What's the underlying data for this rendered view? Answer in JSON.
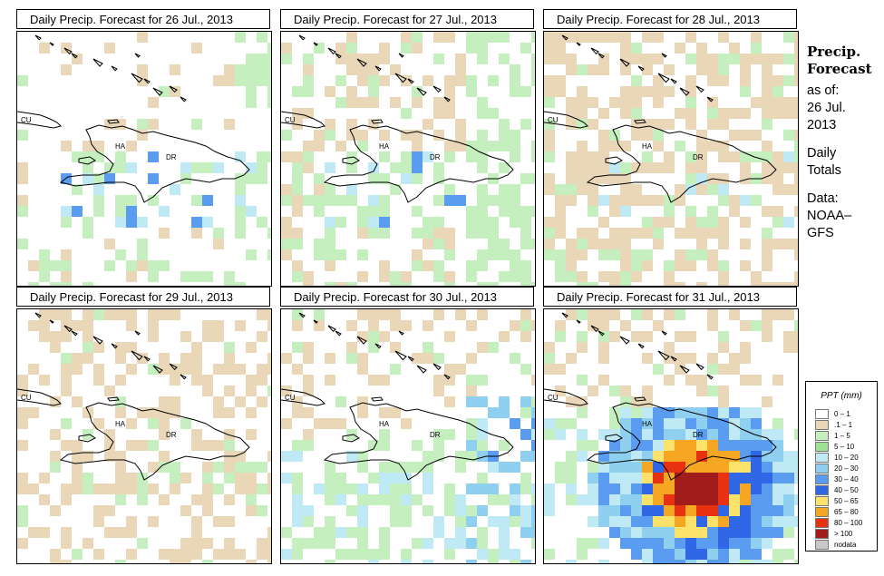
{
  "panels": [
    {
      "title": "Daily Precip. Forecast for  26 Jul., 2013",
      "palette": "p1"
    },
    {
      "title": "Daily Precip. Forecast for  27 Jul., 2013",
      "palette": "p2"
    },
    {
      "title": "Daily Precip. Forecast for  28 Jul., 2013",
      "palette": "p3"
    },
    {
      "title": "Daily Precip. Forecast for  29 Jul., 2013",
      "palette": "p4"
    },
    {
      "title": "Daily Precip. Forecast for  30 Jul., 2013",
      "palette": "p5"
    },
    {
      "title": "Daily Precip. Forecast for  31 Jul., 2013",
      "palette": "p6"
    }
  ],
  "country_labels": {
    "cu": "CU",
    "ha": "HA",
    "dr": "DR"
  },
  "sidebar": {
    "title_line1": "Precip.",
    "title_line2": "Forecast",
    "asof": "as of:",
    "date1": "26 Jul.",
    "date2": "2013",
    "daily": "Daily",
    "totals": "Totals",
    "data": "Data:",
    "noaa": "NOAA–",
    "gfs": "GFS"
  },
  "legend": {
    "title": "PPT (mm)",
    "items": [
      {
        "label": "0 – 1",
        "color": "#ffffff"
      },
      {
        "label": ".1 – 1",
        "color": "#e9d7b8"
      },
      {
        "label": "1 – 5",
        "color": "#c6efc0"
      },
      {
        "label": "5 – 10",
        "color": "#9ce396"
      },
      {
        "label": "10 – 20",
        "color": "#bfeaf5"
      },
      {
        "label": "20 – 30",
        "color": "#8fd0f0"
      },
      {
        "label": "30 – 40",
        "color": "#5a9cf0"
      },
      {
        "label": "40 – 50",
        "color": "#2f67e6"
      },
      {
        "label": "50 – 65",
        "color": "#fbe36b"
      },
      {
        "label": "65 – 80",
        "color": "#f5a623"
      },
      {
        "label": "80 – 100",
        "color": "#e8320f"
      },
      {
        "label": "> 100",
        "color": "#a31c1c"
      },
      {
        "label": "nodata",
        "color": "#c8c8c8"
      }
    ]
  }
}
